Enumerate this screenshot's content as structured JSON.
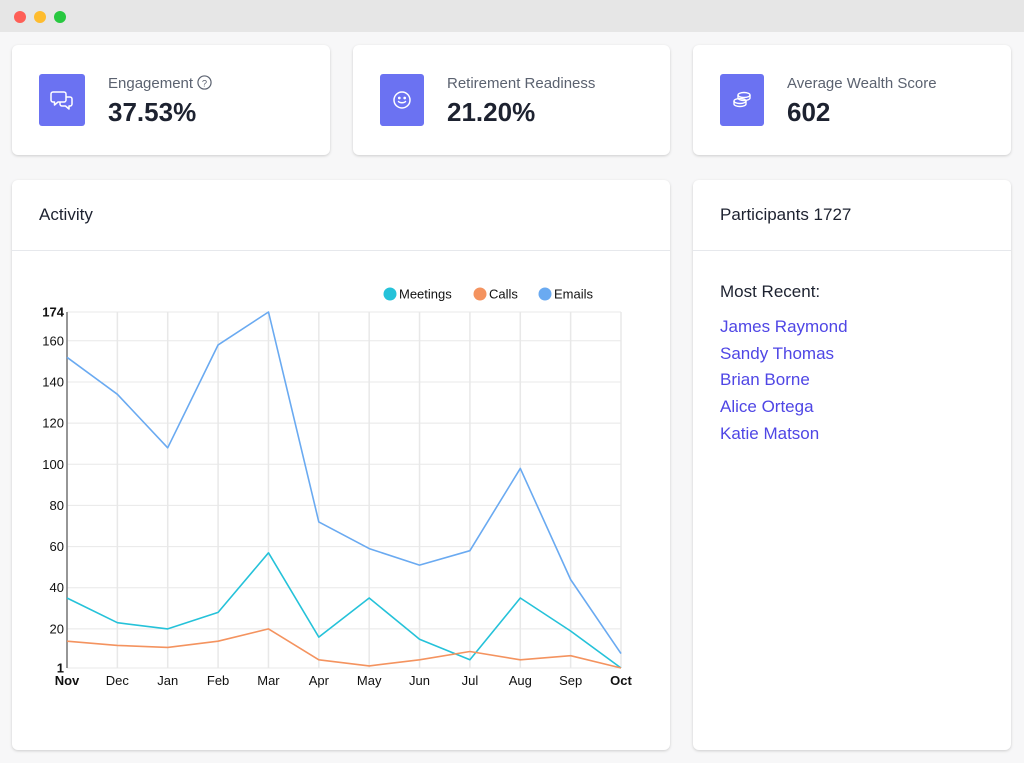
{
  "stats": [
    {
      "label": "Engagement",
      "value": "37.53%",
      "icon": "chat-bubbles-icon"
    },
    {
      "label": "Retirement Readiness",
      "value": "21.20%",
      "icon": "smiley-icon"
    },
    {
      "label": "Average Wealth Score",
      "value": "602",
      "icon": "coins-icon"
    }
  ],
  "activity": {
    "title": "Activity"
  },
  "participants": {
    "title": "Participants 1727",
    "recent_heading": "Most Recent:",
    "names": [
      "James Raymond",
      "Sandy Thomas",
      "Brian Borne",
      "Alice Ortega",
      "Katie Matson"
    ]
  },
  "colors": {
    "accent": "#6b72f2",
    "link": "#4f46e5"
  },
  "chart_data": {
    "type": "line",
    "categories": [
      "Nov",
      "Dec",
      "Jan",
      "Feb",
      "Mar",
      "Apr",
      "May",
      "Jun",
      "Jul",
      "Aug",
      "Sep",
      "Oct"
    ],
    "series": [
      {
        "name": "Meetings",
        "color": "#25c2d9",
        "values": [
          35,
          23,
          20,
          28,
          57,
          16,
          35,
          15,
          5,
          35,
          19,
          1
        ]
      },
      {
        "name": "Calls",
        "color": "#f4935f",
        "values": [
          14,
          12,
          11,
          14,
          20,
          5,
          2,
          5,
          9,
          5,
          7,
          1
        ]
      },
      {
        "name": "Emails",
        "color": "#6aaaf1",
        "values": [
          152,
          134,
          108,
          158,
          174,
          72,
          59,
          51,
          58,
          98,
          44,
          8
        ]
      }
    ],
    "y_ticks": [
      "1",
      "20",
      "40",
      "60",
      "80",
      "100",
      "120",
      "140",
      "160",
      "174"
    ],
    "ylim": [
      1,
      174
    ],
    "grid": true,
    "legend": "top-right"
  }
}
